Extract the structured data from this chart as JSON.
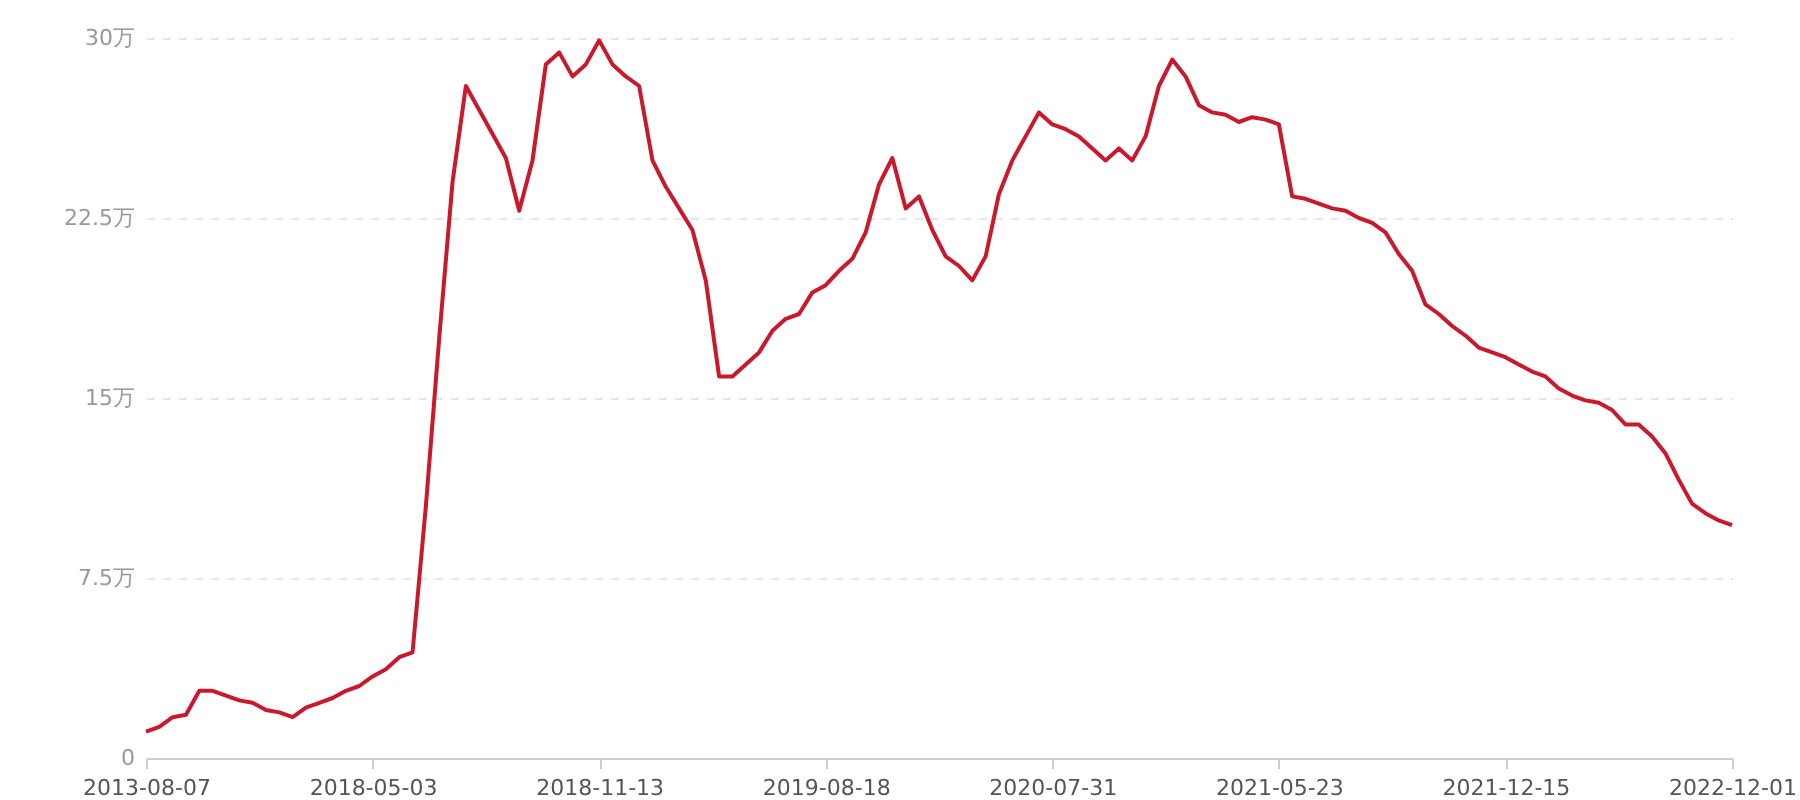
{
  "chart_data": {
    "type": "line",
    "categories": [
      "2013-08-07",
      null,
      null,
      null,
      null,
      null,
      null,
      null,
      null,
      null,
      null,
      null,
      null,
      null,
      null,
      null,
      null,
      "2018-05-03",
      null,
      null,
      null,
      null,
      null,
      null,
      null,
      null,
      null,
      null,
      null,
      null,
      null,
      null,
      null,
      null,
      "2018-11-13",
      null,
      null,
      null,
      null,
      null,
      null,
      null,
      null,
      null,
      null,
      null,
      null,
      null,
      null,
      null,
      null,
      "2019-08-18",
      null,
      null,
      null,
      null,
      null,
      null,
      null,
      null,
      null,
      null,
      null,
      null,
      null,
      null,
      null,
      null,
      "2020-07-31",
      null,
      null,
      null,
      null,
      null,
      null,
      null,
      null,
      null,
      null,
      null,
      null,
      null,
      null,
      null,
      null,
      "2021-05-23",
      null,
      null,
      null,
      null,
      null,
      null,
      null,
      null,
      null,
      null,
      null,
      null,
      null,
      null,
      null,
      null,
      "2021-12-15",
      null,
      null,
      null,
      null,
      null,
      null,
      null,
      null,
      null,
      null,
      null,
      null,
      null,
      null,
      null,
      null,
      "2022-12-01"
    ],
    "series": [
      {
        "color": "#c8192d",
        "values": [
          1.1,
          1.3,
          1.7,
          1.8,
          2.8,
          2.8,
          2.6,
          2.4,
          2.3,
          2.0,
          1.9,
          1.7,
          2.1,
          2.3,
          2.5,
          2.8,
          3.0,
          3.4,
          3.7,
          4.2,
          4.4,
          10.5,
          17.5,
          24.0,
          28.0,
          27.0,
          26.0,
          25.0,
          22.8,
          24.9,
          28.9,
          29.4,
          28.4,
          28.9,
          29.9,
          28.9,
          28.4,
          28.0,
          24.9,
          23.8,
          22.9,
          22.0,
          19.9,
          15.9,
          15.9,
          16.4,
          16.9,
          17.8,
          18.3,
          18.5,
          19.4,
          19.7,
          20.3,
          20.8,
          21.9,
          23.9,
          25.0,
          22.9,
          23.4,
          22.0,
          20.9,
          20.5,
          19.9,
          20.9,
          23.5,
          24.9,
          25.9,
          26.9,
          26.4,
          26.2,
          25.9,
          25.4,
          24.9,
          25.4,
          24.9,
          25.9,
          28.0,
          29.1,
          28.4,
          27.2,
          26.9,
          26.8,
          26.5,
          26.7,
          26.6,
          26.4,
          23.4,
          23.3,
          23.1,
          22.9,
          22.8,
          22.5,
          22.3,
          21.9,
          21.0,
          20.3,
          18.9,
          18.5,
          18.0,
          17.6,
          17.1,
          16.9,
          16.7,
          16.4,
          16.1,
          15.9,
          15.4,
          15.1,
          14.9,
          14.8,
          14.5,
          13.9,
          13.9,
          13.4,
          12.7,
          11.6,
          10.6,
          10.2,
          9.9,
          9.7
        ]
      }
    ],
    "ylim": [
      0,
      30
    ],
    "yticks": [
      0,
      {
        "value": 7.5,
        "label": "7.5万"
      },
      {
        "value": 15,
        "label": "15万"
      },
      {
        "value": 22.5,
        "label": "22.5万"
      },
      {
        "value": 30,
        "label": "30万"
      }
    ],
    "grid": "y",
    "marker": "none",
    "line_style": "solid"
  }
}
